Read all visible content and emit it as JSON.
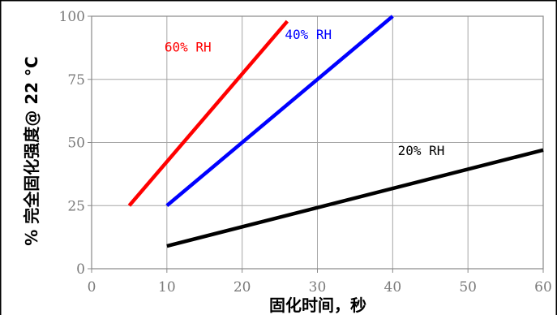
{
  "chart_data": {
    "type": "line",
    "xlabel": "固化时间，秒",
    "ylabel": "% 完全固化强度@ 22 °C",
    "xlim": [
      0,
      60
    ],
    "ylim": [
      0,
      100
    ],
    "x_ticks": [
      0,
      10,
      20,
      30,
      40,
      50,
      60
    ],
    "y_ticks": [
      0,
      25,
      50,
      75,
      100
    ],
    "grid": true,
    "series": [
      {
        "name": "60% RH",
        "color": "#ff0000",
        "x": [
          5,
          26
        ],
        "y": [
          25,
          98
        ]
      },
      {
        "name": "40% RH",
        "color": "#0000ff",
        "x": [
          10,
          40
        ],
        "y": [
          25,
          100
        ]
      },
      {
        "name": "20% RH",
        "color": "#000000",
        "x": [
          10,
          60
        ],
        "y": [
          9,
          47
        ]
      }
    ],
    "annotations": [
      {
        "text": "60% RH",
        "x": 10,
        "y": 88,
        "color": "#ff0000"
      },
      {
        "text": "40% RH",
        "x": 26,
        "y": 93,
        "color": "#0000ff"
      },
      {
        "text": "20% RH",
        "x": 41,
        "y": 47,
        "color": "#000000"
      }
    ]
  }
}
